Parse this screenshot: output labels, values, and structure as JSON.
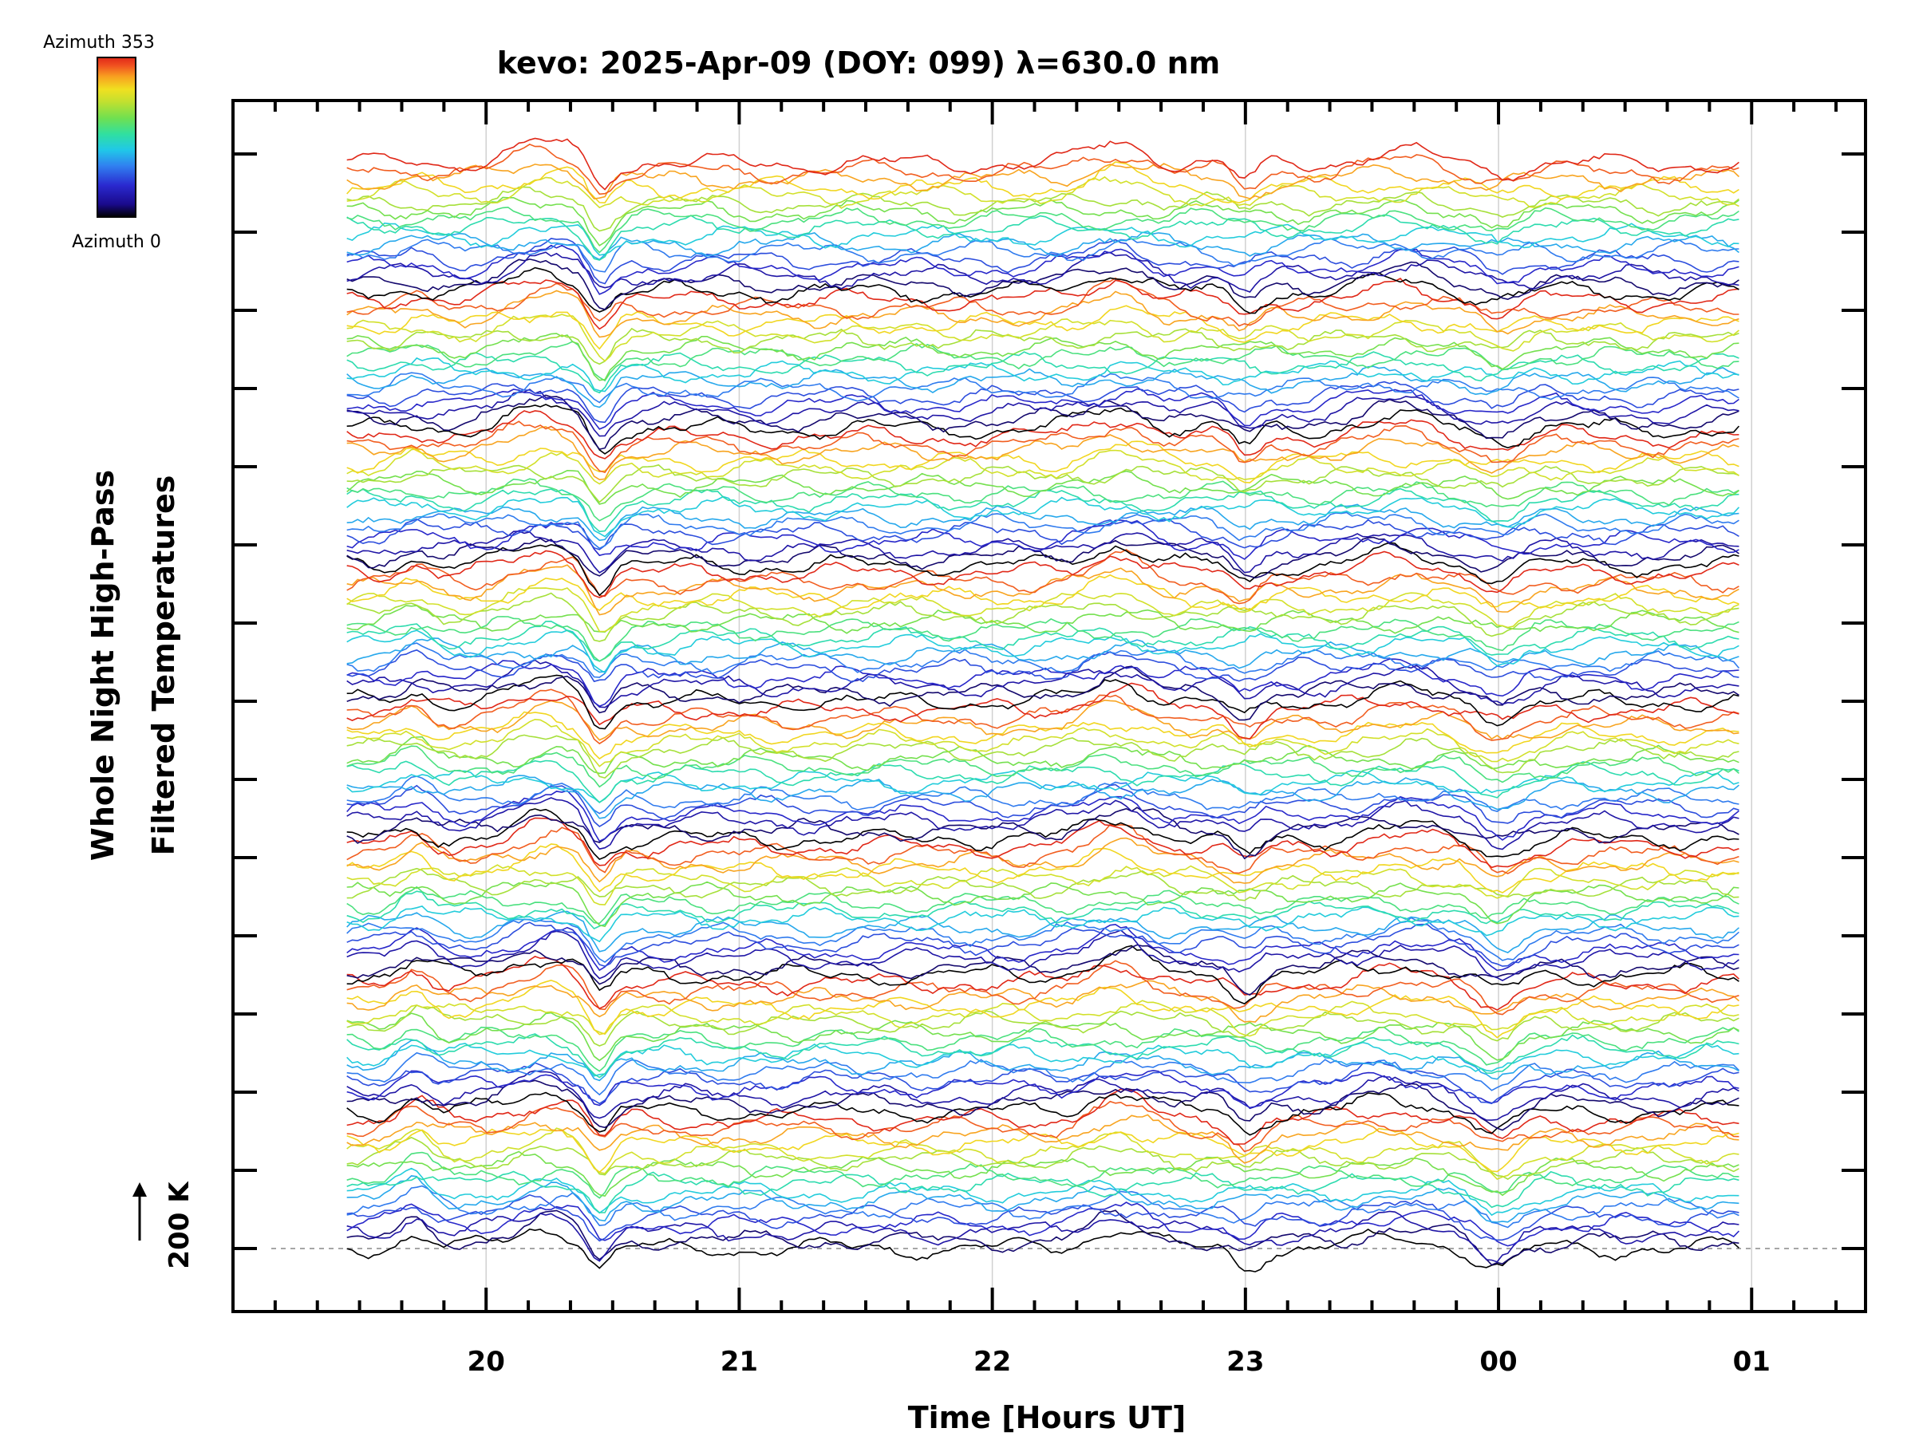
{
  "chart_data": {
    "type": "line",
    "title": "kevo: 2025-Apr-09 (DOY: 099) λ=630.0 nm",
    "xlabel": "Time [Hours UT]",
    "ylabel_line1": "Whole Night High-Pass",
    "ylabel_line2": "Filtered Temperatures",
    "scale_label": "200 K",
    "x_tick_labels": [
      "20",
      "21",
      "22",
      "23",
      "00",
      "01"
    ],
    "x_ticks_hours": [
      20,
      21,
      22,
      23,
      24,
      25
    ],
    "xlim_hours": [
      19.0,
      25.45
    ],
    "data_xrange_hours": [
      19.45,
      24.95
    ],
    "series_count": 136,
    "series_per_group": 17,
    "group_count": 8,
    "baseline_value_K": 200,
    "colorbar": {
      "top_label": "Azimuth 353",
      "bottom_label": "Azimuth 0",
      "colors": [
        "#000000",
        "#1a0a8c",
        "#2a2ad0",
        "#3080f0",
        "#20c8e8",
        "#30e0a0",
        "#70e050",
        "#c0e030",
        "#f0e020",
        "#f8a020",
        "#f05020",
        "#e02818"
      ]
    },
    "grid": true
  }
}
